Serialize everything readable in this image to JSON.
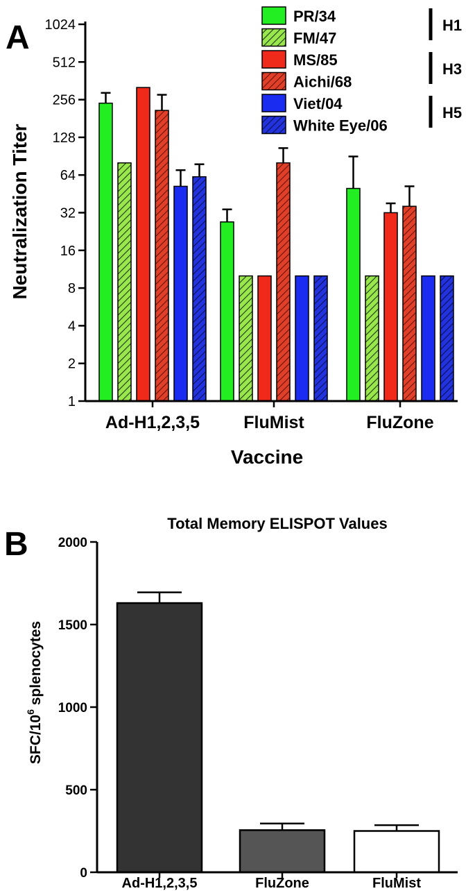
{
  "chart_data": [
    {
      "panel_label": "A",
      "type": "bar",
      "title": "",
      "xlabel": "Vaccine",
      "ylabel": "Neutralization Titer",
      "yscale": "log2",
      "ylim": [
        1,
        1024
      ],
      "yticks": [
        1,
        2,
        4,
        8,
        16,
        32,
        64,
        128,
        256,
        512,
        1024
      ],
      "categories": [
        "Ad-H1,2,3,5",
        "FluMist",
        "FluZone"
      ],
      "legend_position": "top-right",
      "series": [
        {
          "name": "PR/34",
          "color": "#22ee22",
          "pattern": "solid",
          "values": [
            240,
            27,
            50
          ],
          "errors": [
            290,
            34,
            90
          ]
        },
        {
          "name": "FM/47",
          "color": "#99e64d",
          "pattern": "hatched",
          "values": [
            80,
            10,
            10
          ],
          "errors": [
            null,
            null,
            null
          ]
        },
        {
          "name": "MS/85",
          "color": "#f02a1a",
          "pattern": "solid",
          "values": [
            320,
            10,
            32
          ],
          "errors": [
            null,
            null,
            38
          ]
        },
        {
          "name": "Aichi/68",
          "color": "#e0402a",
          "pattern": "hatched",
          "values": [
            210,
            80,
            36
          ],
          "errors": [
            280,
            105,
            52
          ]
        },
        {
          "name": "Viet/04",
          "color": "#1a2cf0",
          "pattern": "solid",
          "values": [
            52,
            10,
            10
          ],
          "errors": [
            70,
            null,
            null
          ]
        },
        {
          "name": "White Eye/06",
          "color": "#2233dd",
          "pattern": "hatched",
          "values": [
            62,
            10,
            10
          ],
          "errors": [
            78,
            null,
            null
          ]
        }
      ],
      "subtype_groups": [
        {
          "label": "H1",
          "series": [
            "PR/34",
            "FM/47"
          ]
        },
        {
          "label": "H3",
          "series": [
            "MS/85",
            "Aichi/68"
          ]
        },
        {
          "label": "H5",
          "series": [
            "Viet/04",
            "White Eye/06"
          ]
        }
      ]
    },
    {
      "panel_label": "B",
      "type": "bar",
      "title": "Total Memory ELISPOT Values",
      "xlabel": "",
      "ylabel": "SFC/10",
      "ylabel_sup": "6",
      "ylabel_tail": " splenocytes",
      "ylim": [
        0,
        2000
      ],
      "yticks": [
        0,
        500,
        1000,
        1500,
        2000
      ],
      "categories": [
        "Ad-H1,2,3,5",
        "FluZone",
        "FluMist"
      ],
      "values": [
        1630,
        255,
        250
      ],
      "errors": [
        1695,
        295,
        285
      ],
      "colors": [
        "#333333",
        "#555555",
        "#ffffff"
      ]
    }
  ]
}
